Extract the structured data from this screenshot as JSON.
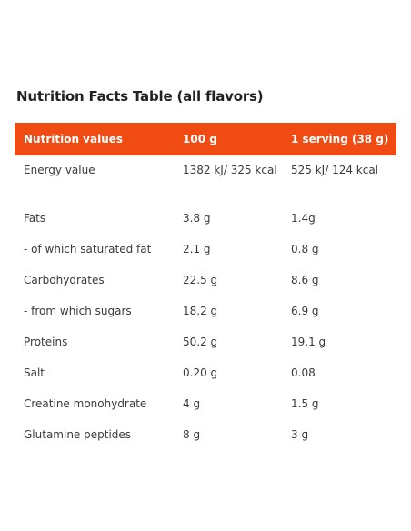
{
  "title": "Nutrition Facts Table (all flavors)",
  "accent_color": "#f04b12",
  "table": {
    "headers": [
      "Nutrition values",
      "100 g",
      "1 serving (38 g)"
    ],
    "rows": [
      [
        "Energy value",
        "1382 kJ/ 325 kcal",
        "525 kJ/ 124 kcal"
      ],
      [
        "Fats",
        "3.8 g",
        "1.4g"
      ],
      [
        "- of which saturated fat",
        "2.1 g",
        "0.8 g"
      ],
      [
        "Carbohydrates",
        "22.5 g",
        "8.6 g"
      ],
      [
        "- from which sugars",
        "18.2 g",
        "6.9 g"
      ],
      [
        "Proteins",
        "50.2 g",
        "19.1 g"
      ],
      [
        "Salt",
        "0.20 g",
        "0.08"
      ],
      [
        "Creatine monohydrate",
        "4 g",
        "1.5 g"
      ],
      [
        "Glutamine peptides",
        "8 g",
        "3 g"
      ]
    ]
  }
}
